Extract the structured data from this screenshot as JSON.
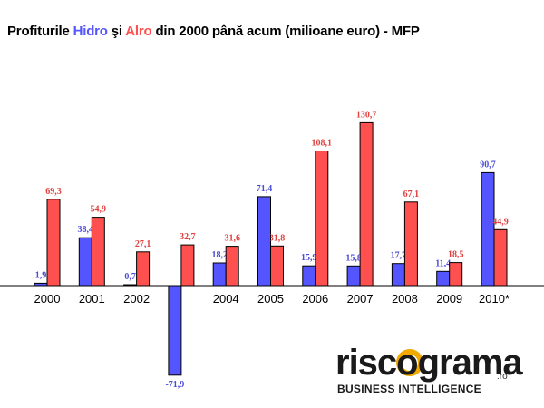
{
  "title": {
    "prefix": "Profiturile ",
    "hidro": "Hidro",
    "middle": " şi ",
    "alro": "Alro",
    "suffix": " din 2000 până acum (milioane euro) - MFP"
  },
  "logo": {
    "brand": "riscograma",
    "domain": ".ro",
    "tagline": "BUSINESS INTELLIGENCE"
  },
  "colors": {
    "hidro": "#5555ff",
    "alro": "#ff5050",
    "hidro_label": "#4b4bd6",
    "alro_label": "#e04040"
  },
  "chart_data": {
    "type": "bar",
    "title": "Profiturile Hidro şi Alro din 2000 până acum (milioane euro) - MFP",
    "categories": [
      "2000",
      "2001",
      "2002",
      "",
      "2004",
      "2005",
      "2006",
      "2007",
      "2008",
      "2009",
      "2010*"
    ],
    "series": [
      {
        "name": "Hidro",
        "values": [
          1.9,
          38.4,
          0.7,
          -71.9,
          18.2,
          71.4,
          15.9,
          15.8,
          17.7,
          11.4,
          90.7
        ],
        "labels": [
          "1,9",
          "38,4",
          "0,7",
          "-71,9",
          "18,2",
          "71,4",
          "15,9",
          "15,8",
          "17,7",
          "11,4",
          "90,7"
        ]
      },
      {
        "name": "Alro",
        "values": [
          69.3,
          54.9,
          27.1,
          32.7,
          31.6,
          31.8,
          108.1,
          130.7,
          67.1,
          18.5,
          44.9
        ],
        "labels": [
          "69,3",
          "54,9",
          "27,1",
          "32,7",
          "31,6",
          "31,8",
          "108,1",
          "130,7",
          "67,1",
          "18,5",
          "44,9"
        ]
      }
    ],
    "ylim": [
      -80,
      140
    ],
    "grid": false,
    "legend": "none"
  }
}
